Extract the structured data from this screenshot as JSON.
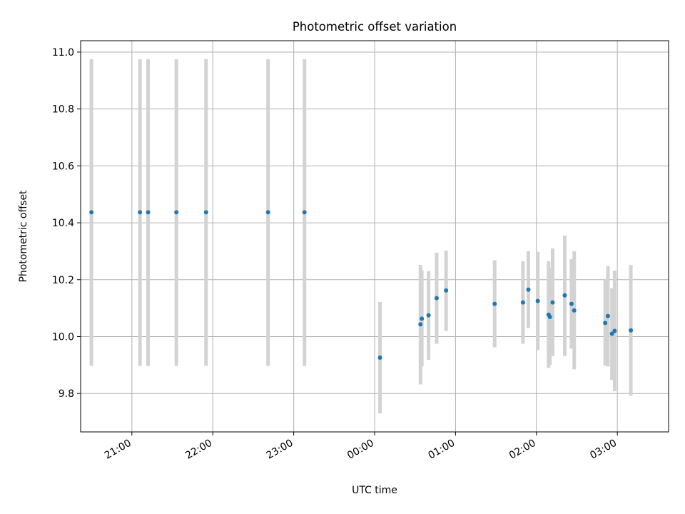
{
  "chart_data": {
    "type": "scatter",
    "title": "Photometric offset variation",
    "xlabel": "UTC time",
    "ylabel": "Photometric offset",
    "x_axis": "time (hours, HH:MM; 00:00 = midnight)",
    "xlim": [
      "20:22",
      "03:38"
    ],
    "ylim": [
      9.665,
      11.04
    ],
    "grid": true,
    "x_ticks": [
      "21:00",
      "22:00",
      "23:00",
      "00:00",
      "01:00",
      "02:00",
      "03:00"
    ],
    "y_ticks": [
      "9.8",
      "10.0",
      "10.2",
      "10.4",
      "10.6",
      "10.8",
      "11.0"
    ],
    "colors": {
      "point": "#1f77b4",
      "errorbar": "#d3d3d3",
      "grid": "#b0b0b0"
    },
    "points": [
      {
        "x": "20:30",
        "y": 10.437,
        "yerr": [
          9.897,
          10.975
        ]
      },
      {
        "x": "21:06",
        "y": 10.437,
        "yerr": [
          9.897,
          10.975
        ]
      },
      {
        "x": "21:12",
        "y": 10.437,
        "yerr": [
          9.897,
          10.975
        ]
      },
      {
        "x": "21:33",
        "y": 10.437,
        "yerr": [
          9.897,
          10.975
        ]
      },
      {
        "x": "21:55",
        "y": 10.437,
        "yerr": [
          9.897,
          10.975
        ]
      },
      {
        "x": "22:41",
        "y": 10.437,
        "yerr": [
          9.897,
          10.975
        ]
      },
      {
        "x": "23:08",
        "y": 10.437,
        "yerr": [
          9.897,
          10.975
        ]
      },
      {
        "x": "00:04",
        "y": 9.926,
        "yerr": [
          9.73,
          10.122
        ]
      },
      {
        "x": "00:34",
        "y": 10.043,
        "yerr": [
          9.832,
          10.252
        ]
      },
      {
        "x": "00:35",
        "y": 10.063,
        "yerr": [
          9.895,
          10.232
        ]
      },
      {
        "x": "00:40",
        "y": 10.075,
        "yerr": [
          9.918,
          10.23
        ]
      },
      {
        "x": "00:46",
        "y": 10.135,
        "yerr": [
          9.975,
          10.295
        ]
      },
      {
        "x": "00:53",
        "y": 10.162,
        "yerr": [
          10.02,
          10.302
        ]
      },
      {
        "x": "01:29",
        "y": 10.115,
        "yerr": [
          9.962,
          10.268
        ]
      },
      {
        "x": "01:50",
        "y": 10.12,
        "yerr": [
          9.975,
          10.265
        ]
      },
      {
        "x": "01:54",
        "y": 10.165,
        "yerr": [
          10.03,
          10.3
        ]
      },
      {
        "x": "02:01",
        "y": 10.125,
        "yerr": [
          9.952,
          10.298
        ]
      },
      {
        "x": "02:09",
        "y": 10.077,
        "yerr": [
          9.89,
          10.265
        ]
      },
      {
        "x": "02:10",
        "y": 10.069,
        "yerr": [
          9.9,
          10.24
        ]
      },
      {
        "x": "02:12",
        "y": 10.12,
        "yerr": [
          9.932,
          10.31
        ]
      },
      {
        "x": "02:21",
        "y": 10.145,
        "yerr": [
          9.932,
          10.355
        ]
      },
      {
        "x": "02:26",
        "y": 10.115,
        "yerr": [
          9.958,
          10.272
        ]
      },
      {
        "x": "02:28",
        "y": 10.092,
        "yerr": [
          9.885,
          10.3
        ]
      },
      {
        "x": "02:51",
        "y": 10.048,
        "yerr": [
          9.898,
          10.2
        ]
      },
      {
        "x": "02:53",
        "y": 10.072,
        "yerr": [
          9.895,
          10.248
        ]
      },
      {
        "x": "02:56",
        "y": 10.01,
        "yerr": [
          9.848,
          10.17
        ]
      },
      {
        "x": "02:58",
        "y": 10.02,
        "yerr": [
          9.808,
          10.232
        ]
      },
      {
        "x": "03:10",
        "y": 10.022,
        "yerr": [
          9.792,
          10.252
        ]
      }
    ]
  }
}
